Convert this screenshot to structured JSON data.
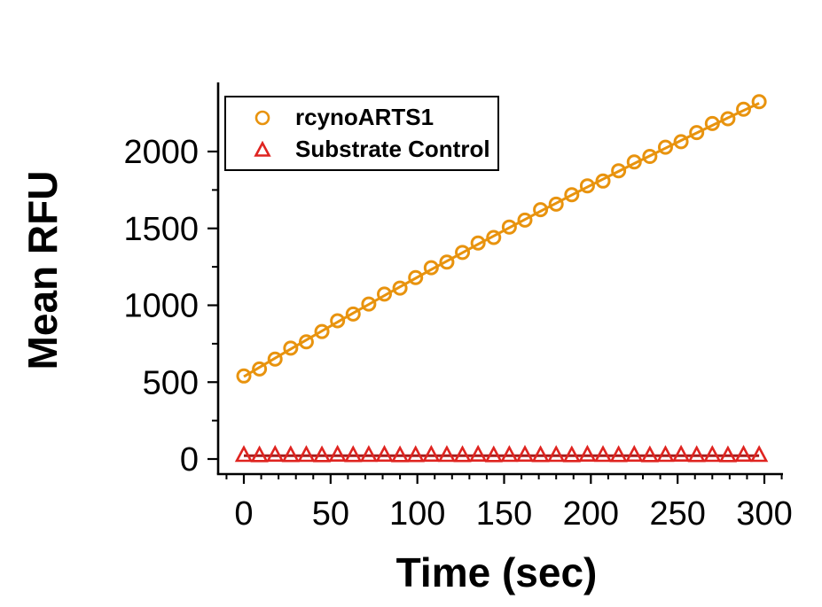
{
  "axis_titles": {
    "x": "Time (sec)",
    "y": "Mean RFU"
  },
  "legend": {
    "items": [
      {
        "label": "rcynoARTS1",
        "marker": "circle",
        "color": "#E8930E"
      },
      {
        "label": "Substrate Control",
        "marker": "triangle",
        "color": "#DF2420"
      }
    ]
  },
  "chart_data": {
    "type": "scatter",
    "title": "",
    "xlabel": "Time (sec)",
    "ylabel": "Mean RFU",
    "x_ticks_major": [
      0,
      50,
      100,
      150,
      200,
      250,
      300
    ],
    "x_ticks_minor": [
      -10,
      10,
      20,
      30,
      40,
      60,
      70,
      80,
      90,
      110,
      120,
      130,
      140,
      160,
      170,
      180,
      190,
      210,
      220,
      230,
      240,
      260,
      270,
      280,
      290,
      310
    ],
    "y_ticks_major": [
      0,
      500,
      1000,
      1500,
      2000
    ],
    "y_ticks_minor": [
      250,
      750,
      1250,
      1750
    ],
    "x_axis_range": [
      -15,
      312
    ],
    "y_axis_range": [
      -100,
      2450
    ],
    "grid": false,
    "legend_position": "top-left-inside",
    "x": [
      0,
      9,
      18,
      27,
      36,
      45,
      54,
      63,
      72,
      81,
      90,
      99,
      108,
      117,
      126,
      135,
      144,
      153,
      162,
      171,
      180,
      189,
      198,
      207,
      216,
      225,
      234,
      243,
      252,
      261,
      270,
      279,
      288,
      297
    ],
    "series": [
      {
        "name": "rcynoARTS1",
        "marker": "circle",
        "marker_color": "#E8930E",
        "line_color": "#E8930E",
        "values": [
          540,
          586,
          650,
          721,
          762,
          829,
          899,
          943,
          1008,
          1073,
          1112,
          1180,
          1244,
          1281,
          1344,
          1405,
          1441,
          1509,
          1554,
          1622,
          1658,
          1719,
          1777,
          1808,
          1875,
          1932,
          1968,
          2028,
          2064,
          2123,
          2182,
          2213,
          2275,
          2324
        ],
        "fit_line": [
          536,
          596,
          656,
          715,
          774,
          833,
          891,
          949,
          1006,
          1063,
          1120,
          1176,
          1232,
          1287,
          1342,
          1397,
          1451,
          1505,
          1558,
          1612,
          1664,
          1717,
          1769,
          1820,
          1871,
          1922,
          1972,
          2022,
          2072,
          2121,
          2170,
          2219,
          2267,
          2314
        ]
      },
      {
        "name": "Substrate Control",
        "marker": "triangle",
        "marker_color": "#DF2420",
        "line_color": "#A51E1E",
        "values": [
          26,
          24,
          27,
          25,
          26,
          24,
          28,
          25,
          26,
          27,
          24,
          25,
          27,
          26,
          25,
          28,
          24,
          26,
          27,
          25,
          26,
          24,
          28,
          26,
          25,
          27,
          24,
          26,
          28,
          25,
          26,
          24,
          27,
          26
        ],
        "fit_line": [
          22,
          22,
          22,
          22,
          22,
          22,
          22,
          22,
          22,
          22,
          22,
          22,
          22,
          22,
          22,
          22,
          22,
          22,
          22,
          22,
          22,
          22,
          22,
          22,
          22,
          22,
          22,
          22,
          22,
          22,
          22,
          22,
          22,
          22
        ]
      }
    ]
  }
}
